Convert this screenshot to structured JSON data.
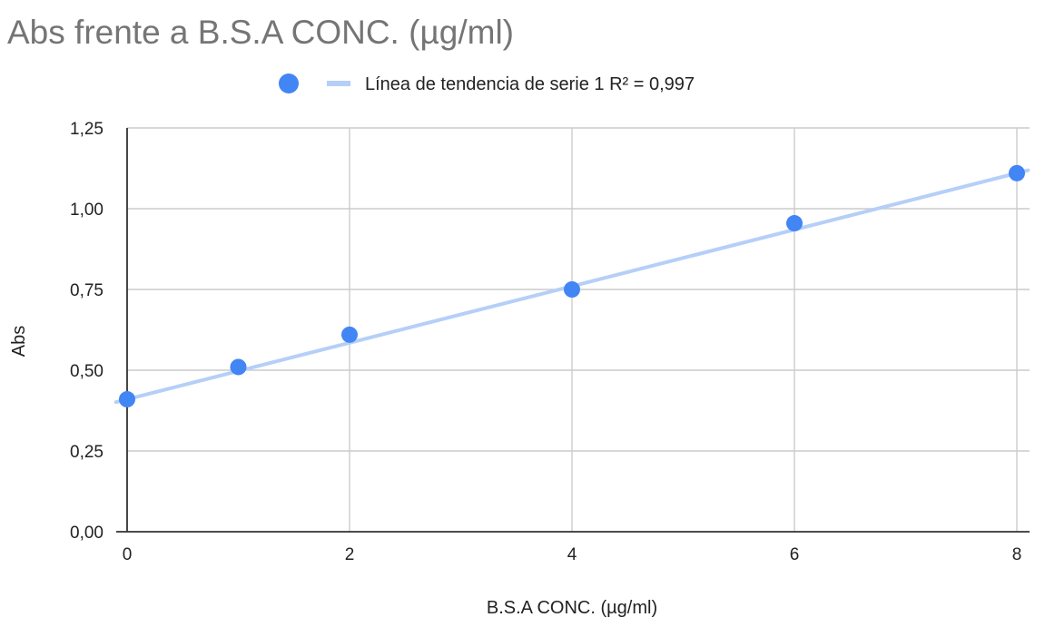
{
  "chart_data": {
    "type": "scatter",
    "title": "Abs frente a B.S.A CONC. (µg/ml)",
    "xlabel": "B.S.A CONC. (µg/ml)",
    "ylabel": "Abs",
    "xlim": [
      0,
      8
    ],
    "ylim": [
      0,
      1.25
    ],
    "x_ticks": [
      0,
      2,
      4,
      6,
      8
    ],
    "y_ticks": [
      0,
      0.25,
      0.5,
      0.75,
      1.0,
      1.25
    ],
    "x_tick_labels": [
      "0",
      "2",
      "4",
      "6",
      "8"
    ],
    "y_tick_labels": [
      "0,00",
      "0,25",
      "0,50",
      "0,75",
      "1,00",
      "1,25"
    ],
    "grid": true,
    "legend_position": "top-center",
    "series": [
      {
        "color": "#4285f4",
        "points": [
          {
            "x": 0,
            "y": 0.41
          },
          {
            "x": 1,
            "y": 0.51
          },
          {
            "x": 2,
            "y": 0.61
          },
          {
            "x": 4,
            "y": 0.75
          },
          {
            "x": 6,
            "y": 0.955
          },
          {
            "x": 8,
            "y": 1.11
          }
        ]
      }
    ],
    "trendline": {
      "label": "Línea de tendencia de serie 1 R² = 0,997",
      "color": "#b5cff8",
      "x_range": [
        -0.1,
        8.1
      ],
      "y_start": 0.41,
      "y_end": 1.11
    }
  }
}
